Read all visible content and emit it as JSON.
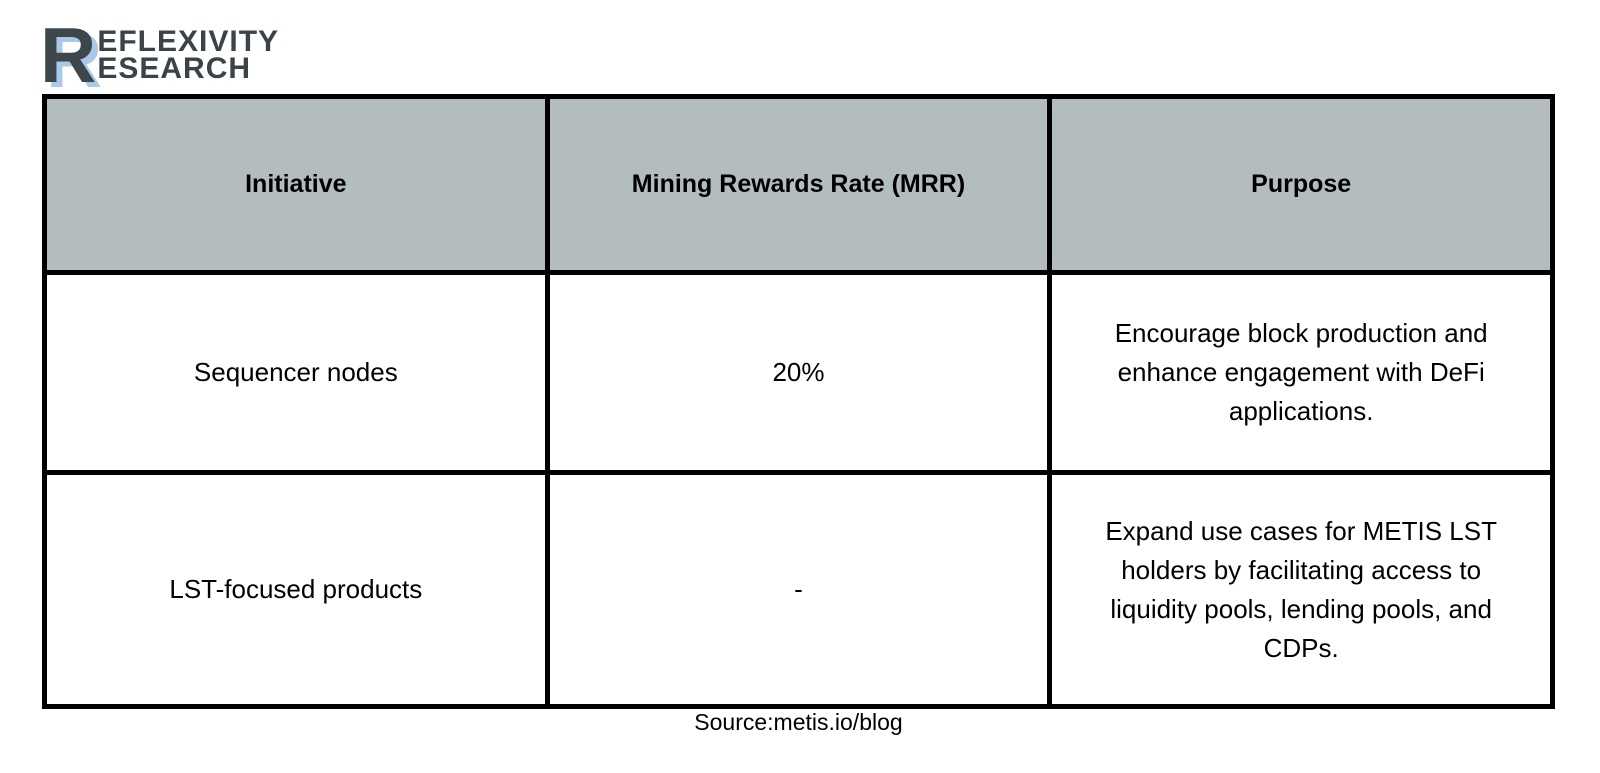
{
  "logo": {
    "big_letter": "R",
    "line1": "EFLEXIVITY",
    "line2": "ESEARCH"
  },
  "table": {
    "columns": [
      "Initiative",
      "Mining Rewards Rate (MRR)",
      "Purpose"
    ],
    "rows": [
      {
        "initiative": "Sequencer nodes",
        "mrr": "20%",
        "purpose": "Encourage block production and enhance engagement with DeFi applications."
      },
      {
        "initiative": "LST-focused products",
        "mrr": "-",
        "purpose": "Expand use cases for METIS LST holders by facilitating access to liquidity pools, lending pools, and CDPs."
      }
    ]
  },
  "source": "Source:metis.io/blog",
  "colors": {
    "header_bg": "#b3bcbe",
    "border": "#000000",
    "logo_dark": "#3d464a",
    "logo_blue": "#a9c9e9"
  }
}
